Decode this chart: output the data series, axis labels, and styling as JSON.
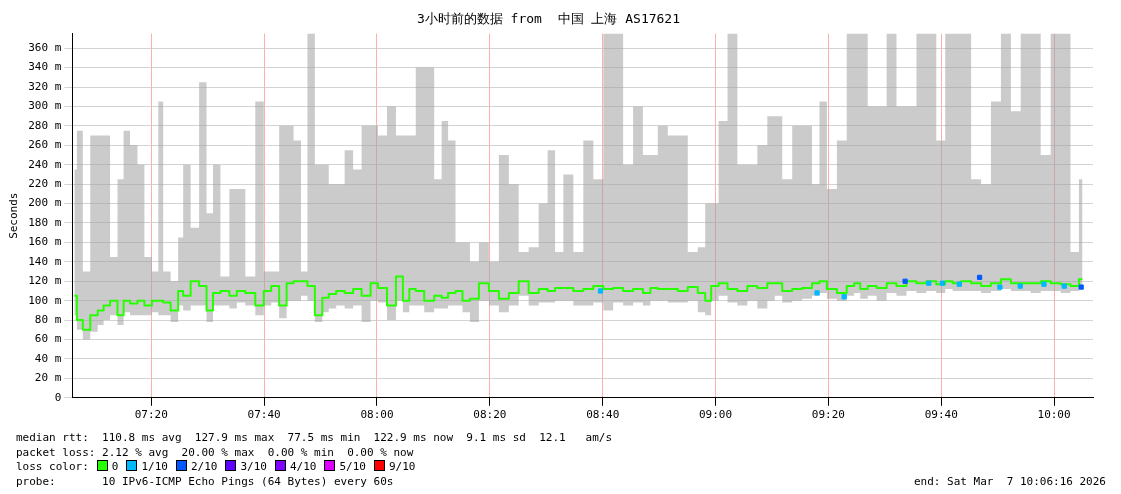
{
  "chart_data": {
    "type": "step",
    "title": "3小时前的数据 from  中国 上海 AS17621",
    "ylabel": "Seconds",
    "xlim": [
      7.1,
      10.115
    ],
    "xticks": [
      {
        "value": 7.3333,
        "label": "07:20"
      },
      {
        "value": 7.6667,
        "label": "07:40"
      },
      {
        "value": 8,
        "label": "08:00"
      },
      {
        "value": 8.3333,
        "label": "08:20"
      },
      {
        "value": 8.6667,
        "label": "08:40"
      },
      {
        "value": 9,
        "label": "09:00"
      },
      {
        "value": 9.3333,
        "label": "09:20"
      },
      {
        "value": 9.6667,
        "label": "09:40"
      },
      {
        "value": 10,
        "label": "10:00"
      }
    ],
    "ylim": [
      0,
      375
    ],
    "yticks": [
      0,
      {
        "value": 20,
        "label": "20 m"
      },
      {
        "value": 40,
        "label": "40 m"
      },
      {
        "value": 60,
        "label": "60 m"
      },
      {
        "value": 80,
        "label": "80 m"
      },
      {
        "value": 100,
        "label": "100 m"
      },
      {
        "value": 120,
        "label": "120 m"
      },
      {
        "value": 140,
        "label": "140 m"
      },
      {
        "value": 160,
        "label": "160 m"
      },
      {
        "value": 180,
        "label": "180 m"
      },
      {
        "value": 200,
        "label": "200 m"
      },
      {
        "value": 220,
        "label": "220 m"
      },
      {
        "value": 240,
        "label": "240 m"
      },
      {
        "value": 260,
        "label": "260 m"
      },
      {
        "value": 280,
        "label": "280 m"
      },
      {
        "value": 300,
        "label": "300 m"
      },
      {
        "value": 320,
        "label": "320 m"
      },
      {
        "value": 340,
        "label": "340 m"
      },
      {
        "value": 360,
        "label": "360 m"
      }
    ],
    "grid": true,
    "legend": "bottom left",
    "legend_title": "loss color:",
    "x": [
      7.106,
      7.121,
      7.141,
      7.165,
      7.185,
      7.2,
      7.223,
      7.244,
      7.259,
      7.282,
      7.303,
      7.323,
      7.347,
      7.361,
      7.376,
      7.405,
      7.42,
      7.435,
      7.464,
      7.485,
      7.508,
      7.523,
      7.552,
      7.576,
      7.596,
      7.626,
      7.655,
      7.676,
      7.699,
      7.723,
      7.743,
      7.764,
      7.787,
      7.802,
      7.831,
      7.846,
      7.869,
      7.89,
      7.919,
      7.94,
      7.969,
      7.993,
      8.013,
      8.046,
      8.066,
      8.087,
      8.104,
      8.125,
      8.154,
      8.184,
      8.198,
      8.222,
      8.242,
      8.263,
      8.286,
      8.316,
      8.345,
      8.375,
      8.404,
      8.433,
      8.463,
      8.492,
      8.516,
      8.536,
      8.565,
      8.595,
      8.624,
      8.654,
      8.683,
      8.712,
      8.742,
      8.771,
      8.8,
      8.815,
      8.844,
      8.874,
      8.903,
      8.933,
      8.962,
      8.977,
      8.997,
      9.021,
      9.05,
      9.079,
      9.109,
      9.138,
      9.168,
      9.182,
      9.212,
      9.241,
      9.27,
      9.3,
      9.314,
      9.344,
      9.373,
      9.402,
      9.417,
      9.438,
      9.461,
      9.491,
      9.52,
      9.549,
      9.579,
      9.608,
      9.637,
      9.667,
      9.69,
      9.711,
      9.74,
      9.77,
      9.799,
      9.828,
      9.858,
      9.887,
      9.916,
      9.946,
      9.975,
      10.005,
      10.034,
      10.063,
      10.084
    ],
    "series": [
      {
        "name": "0",
        "color": "#26ff00",
        "values": [
          105,
          80,
          70,
          85,
          90,
          95,
          100,
          85,
          100,
          97,
          100,
          95,
          100,
          100,
          98,
          90,
          110,
          105,
          120,
          115,
          90,
          108,
          110,
          105,
          110,
          108,
          95,
          110,
          115,
          95,
          118,
          120,
          120,
          115,
          85,
          103,
          107,
          110,
          108,
          112,
          105,
          118,
          113,
          95,
          125,
          100,
          112,
          110,
          100,
          105,
          103,
          108,
          110,
          100,
          102,
          118,
          110,
          102,
          108,
          120,
          108,
          112,
          110,
          113,
          113,
          110,
          112,
          115,
          112,
          113,
          110,
          112,
          108,
          113,
          112,
          112,
          110,
          114,
          108,
          100,
          115,
          118,
          112,
          110,
          115,
          113,
          118,
          118,
          110,
          112,
          113,
          118,
          120,
          112,
          108,
          115,
          118,
          112,
          115,
          113,
          118,
          115,
          120,
          118,
          120,
          117,
          120,
          118,
          120,
          118,
          115,
          118,
          122,
          118,
          118,
          118,
          120,
          118,
          117,
          115,
          122
        ],
        "lower": [
          85,
          70,
          60,
          68,
          75,
          80,
          85,
          75,
          88,
          85,
          85,
          85,
          88,
          85,
          85,
          78,
          95,
          90,
          95,
          95,
          78,
          95,
          95,
          92,
          98,
          95,
          85,
          95,
          98,
          82,
          100,
          100,
          105,
          100,
          78,
          88,
          92,
          95,
          92,
          95,
          78,
          100,
          98,
          80,
          100,
          88,
          95,
          95,
          88,
          92,
          92,
          95,
          95,
          88,
          78,
          100,
          95,
          88,
          95,
          105,
          95,
          98,
          98,
          100,
          100,
          95,
          95,
          98,
          90,
          98,
          95,
          98,
          95,
          100,
          100,
          98,
          98,
          100,
          88,
          85,
          100,
          105,
          98,
          95,
          100,
          92,
          100,
          105,
          98,
          100,
          102,
          105,
          108,
          102,
          100,
          105,
          108,
          102,
          105,
          100,
          108,
          105,
          110,
          108,
          110,
          108,
          112,
          110,
          110,
          110,
          108,
          110,
          112,
          110,
          110,
          108,
          110,
          110,
          108,
          110,
          112
        ],
        "upper": [
          235,
          275,
          130,
          270,
          270,
          270,
          145,
          225,
          275,
          260,
          240,
          145,
          130,
          305,
          130,
          120,
          165,
          240,
          175,
          325,
          190,
          240,
          125,
          215,
          215,
          125,
          305,
          130,
          130,
          280,
          280,
          265,
          130,
          375,
          240,
          240,
          220,
          220,
          255,
          235,
          280,
          280,
          270,
          300,
          270,
          270,
          270,
          340,
          340,
          225,
          285,
          265,
          160,
          160,
          140,
          160,
          140,
          250,
          220,
          150,
          155,
          200,
          255,
          150,
          230,
          150,
          265,
          225,
          375,
          375,
          240,
          300,
          250,
          250,
          280,
          270,
          270,
          150,
          155,
          200,
          200,
          285,
          375,
          240,
          240,
          260,
          290,
          290,
          225,
          280,
          280,
          220,
          305,
          215,
          265,
          375,
          375,
          375,
          300,
          300,
          375,
          300,
          300,
          375,
          375,
          265,
          375,
          375,
          375,
          225,
          220,
          305,
          375,
          295,
          375,
          375,
          250,
          375,
          375,
          150,
          225
        ]
      },
      {
        "name": "1/10",
        "color": "#00b8ff",
        "type": "scatter",
        "x": [
          8.66,
          9.3,
          9.38,
          9.63,
          9.67,
          9.72,
          9.84,
          9.9,
          9.97,
          10.03
        ],
        "values": [
          110,
          108,
          104,
          118,
          118,
          117,
          114,
          115,
          117,
          115
        ]
      },
      {
        "name": "2/10",
        "color": "#0059ff",
        "type": "scatter",
        "x": [
          9.56,
          9.78,
          10.08
        ],
        "values": [
          120,
          124,
          114
        ]
      },
      {
        "name": "3/10",
        "color": "#5e00ff",
        "type": "scatter",
        "values": [
          null,
          null,
          null,
          null,
          null,
          null,
          null,
          null,
          null,
          null,
          null,
          null,
          null,
          null,
          null,
          null,
          null,
          null,
          null,
          null,
          null,
          null,
          null,
          null,
          null,
          null,
          null,
          null,
          null,
          null,
          null,
          null,
          null,
          null,
          null,
          null,
          null,
          null,
          null,
          null,
          null,
          null,
          null,
          null,
          null,
          null,
          null,
          null,
          null,
          null,
          null,
          null,
          null,
          null,
          null,
          null,
          null,
          null,
          null,
          null,
          null,
          null,
          null,
          null,
          null,
          null,
          null,
          null,
          null,
          null,
          null,
          null,
          null,
          null,
          null,
          null,
          null,
          null,
          null,
          null,
          null,
          null,
          null,
          null,
          null,
          null,
          null,
          null,
          null,
          null,
          null,
          null,
          null,
          null,
          null,
          null,
          null,
          null,
          null,
          null,
          null,
          null,
          null,
          null,
          null,
          null,
          null,
          null,
          null,
          null,
          null,
          null,
          null,
          null,
          null,
          null,
          null,
          null,
          null,
          null,
          null
        ]
      },
      {
        "name": "4/10",
        "color": "#7e00ff",
        "type": "scatter",
        "values": [
          null,
          null,
          null,
          null,
          null,
          null,
          null,
          null,
          null,
          null,
          null,
          null,
          null,
          null,
          null,
          null,
          null,
          null,
          null,
          null,
          null,
          null,
          null,
          null,
          null,
          null,
          null,
          null,
          null,
          null,
          null,
          null,
          null,
          null,
          null,
          null,
          null,
          null,
          null,
          null,
          null,
          null,
          null,
          null,
          null,
          null,
          null,
          null,
          null,
          null,
          null,
          null,
          null,
          null,
          null,
          null,
          null,
          null,
          null,
          null,
          null,
          null,
          null,
          null,
          null,
          null,
          null,
          null,
          null,
          null,
          null,
          null,
          null,
          null,
          null,
          null,
          null,
          null,
          null,
          null,
          null,
          null,
          null,
          null,
          null,
          null,
          null,
          null,
          null,
          null,
          null,
          null,
          null,
          null,
          null,
          null,
          null,
          null,
          null,
          null,
          null,
          null,
          null,
          null,
          null,
          null,
          null,
          null,
          null,
          null,
          null,
          null,
          null,
          null,
          null,
          null,
          null,
          null,
          null,
          null,
          null
        ]
      },
      {
        "name": "5/10",
        "color": "#dd00ff",
        "type": "scatter",
        "values": [
          null,
          null,
          null,
          null,
          null,
          null,
          null,
          null,
          null,
          null,
          null,
          null,
          null,
          null,
          null,
          null,
          null,
          null,
          null,
          null,
          null,
          null,
          null,
          null,
          null,
          null,
          null,
          null,
          null,
          null,
          null,
          null,
          null,
          null,
          null,
          null,
          null,
          null,
          null,
          null,
          null,
          null,
          null,
          null,
          null,
          null,
          null,
          null,
          null,
          null,
          null,
          null,
          null,
          null,
          null,
          null,
          null,
          null,
          null,
          null,
          null,
          null,
          null,
          null,
          null,
          null,
          null,
          null,
          null,
          null,
          null,
          null,
          null,
          null,
          null,
          null,
          null,
          null,
          null,
          null,
          null,
          null,
          null,
          null,
          null,
          null,
          null,
          null,
          null,
          null,
          null,
          null,
          null,
          null,
          null,
          null,
          null,
          null,
          null,
          null,
          null,
          null,
          null,
          null,
          null,
          null,
          null,
          null,
          null,
          null,
          null,
          null,
          null,
          null,
          null,
          null,
          null,
          null,
          null,
          null,
          null
        ]
      },
      {
        "name": "9/10",
        "color": "#ff0000",
        "type": "scatter",
        "values": [
          null,
          null,
          null,
          null,
          null,
          null,
          null,
          null,
          null,
          null,
          null,
          null,
          null,
          null,
          null,
          null,
          null,
          null,
          null,
          null,
          null,
          null,
          null,
          null,
          null,
          null,
          null,
          null,
          null,
          null,
          null,
          null,
          null,
          null,
          null,
          null,
          null,
          null,
          null,
          null,
          null,
          null,
          null,
          null,
          null,
          null,
          null,
          null,
          null,
          null,
          null,
          null,
          null,
          null,
          null,
          null,
          null,
          null,
          null,
          null,
          null,
          null,
          null,
          null,
          null,
          null,
          null,
          null,
          null,
          null,
          null,
          null,
          null,
          null,
          null,
          null,
          null,
          null,
          null,
          null,
          null,
          null,
          null,
          null,
          null,
          null,
          null,
          null,
          null,
          null,
          null,
          null,
          null,
          null,
          null,
          null,
          null,
          null,
          null,
          null,
          null,
          null,
          null,
          null,
          null,
          null,
          null,
          null,
          null,
          null,
          null,
          null,
          null,
          null,
          null,
          null,
          null,
          null,
          null,
          null,
          null
        ]
      }
    ],
    "annotations": [
      "median rtt:  110.8 ms avg  127.9 ms max  77.5 ms min  122.9 ms now  9.1 ms sd  12.1   am/s",
      "packet loss: 2.12 % avg  20.00 % max  0.00 % min  0.00 % now",
      "probe:       10 IPv6-ICMP Echo Pings (64 Bytes) every 60s",
      "end: Sat Mar  7 10:06:16 2026"
    ]
  }
}
